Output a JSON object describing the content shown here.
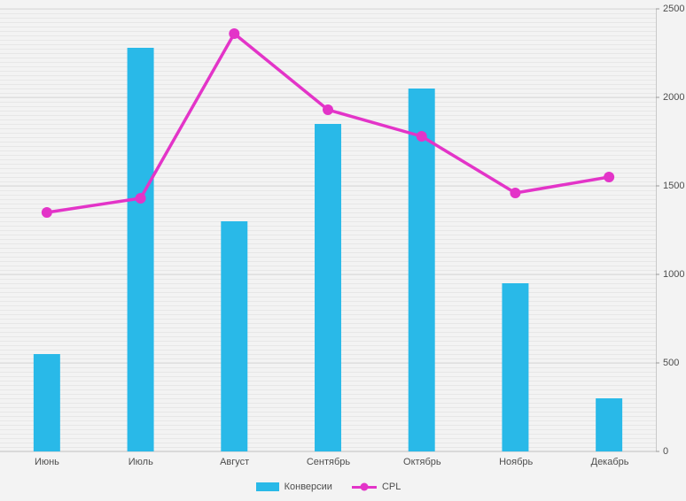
{
  "chart_data": {
    "type": "bar",
    "title": "",
    "categories": [
      "Июнь",
      "Июль",
      "Август",
      "Сентябрь",
      "Октябрь",
      "Ноябрь",
      "Декабрь"
    ],
    "series": [
      {
        "name": "Конверсии",
        "type": "bar",
        "color": "#29b9e8",
        "values": [
          550,
          2280,
          1300,
          1850,
          2050,
          950,
          300
        ]
      },
      {
        "name": "CPL",
        "type": "line",
        "color": "#e334c8",
        "values": [
          1350,
          1430,
          2360,
          1930,
          1780,
          1460,
          1550
        ]
      }
    ],
    "xlabel": "",
    "ylabel": "",
    "ylim": [
      0,
      2500
    ],
    "yticks": [
      0,
      500,
      1000,
      1500,
      2000,
      2500
    ],
    "y_axis_side": "right",
    "grid": "horizontal",
    "legend_position": "bottom",
    "colors": {
      "axis_text": "#4d4d4d",
      "background": "#f3f3f3",
      "major_gridline": "#d8d8d8",
      "baseline": "#bfbfbf"
    }
  }
}
